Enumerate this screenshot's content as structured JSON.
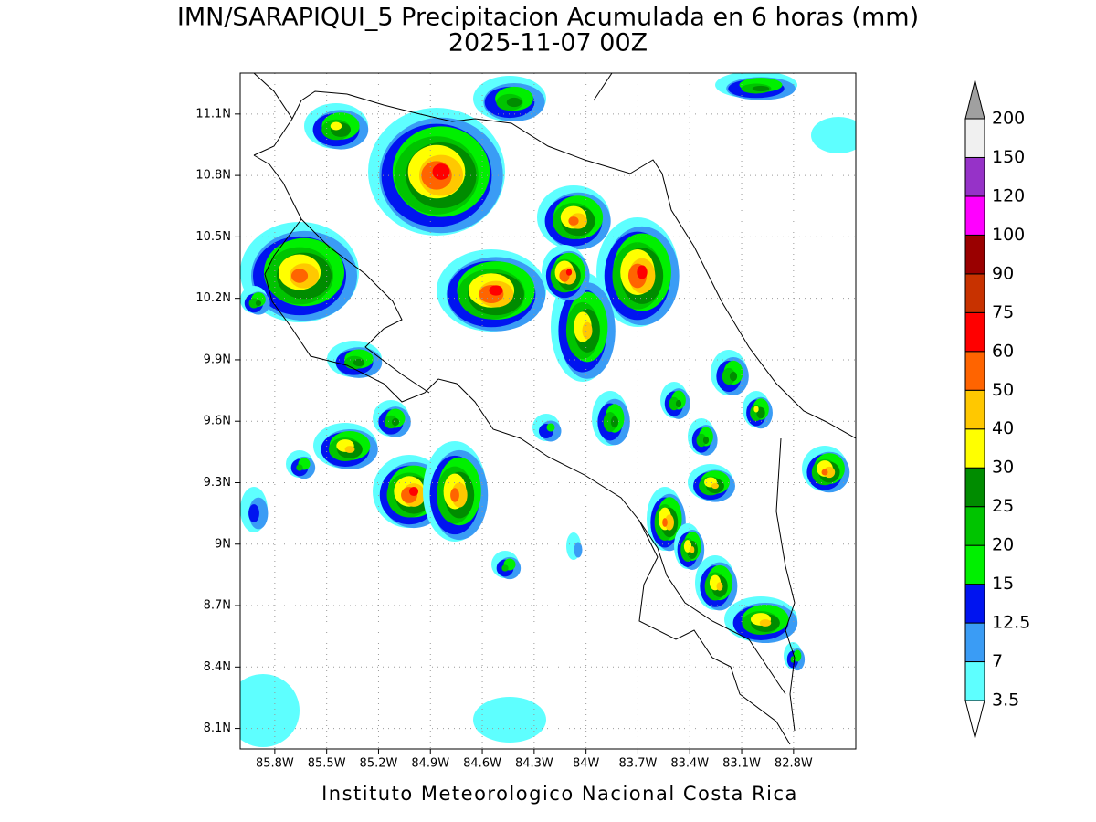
{
  "header": {
    "title": "IMN/SARAPIQUI_5 Precipitacion Acumulada en 6 horas (mm)",
    "subtitle": "2025-11-07 00Z"
  },
  "map": {
    "lonlim": [
      -86.0,
      -82.44
    ],
    "latlim": [
      8.0,
      11.3
    ],
    "lon_ticks": [
      {
        "value": -85.8,
        "label": "85.8W"
      },
      {
        "value": -85.5,
        "label": "85.5W"
      },
      {
        "value": -85.2,
        "label": "85.2W"
      },
      {
        "value": -84.9,
        "label": "84.9W"
      },
      {
        "value": -84.6,
        "label": "84.6W"
      },
      {
        "value": -84.3,
        "label": "84.3W"
      },
      {
        "value": -84.0,
        "label": "84W"
      },
      {
        "value": -83.7,
        "label": "83.7W"
      },
      {
        "value": -83.4,
        "label": "83.4W"
      },
      {
        "value": -83.1,
        "label": "83.1W"
      },
      {
        "value": -82.8,
        "label": "82.8W"
      }
    ],
    "lat_ticks": [
      {
        "value": 8.1,
        "label": "8.1N"
      },
      {
        "value": 8.4,
        "label": "8.4N"
      },
      {
        "value": 8.7,
        "label": "8.7N"
      },
      {
        "value": 9.0,
        "label": "9N"
      },
      {
        "value": 9.3,
        "label": "9.3N"
      },
      {
        "value": 9.6,
        "label": "9.6N"
      },
      {
        "value": 9.9,
        "label": "9.9N"
      },
      {
        "value": 10.2,
        "label": "10.2N"
      },
      {
        "value": 10.5,
        "label": "10.5N"
      },
      {
        "value": 10.8,
        "label": "10.8N"
      },
      {
        "value": 11.1,
        "label": "11.1N"
      }
    ],
    "grid": true
  },
  "colorbar": {
    "levels": [
      3.5,
      7,
      12.5,
      15,
      20,
      25,
      30,
      40,
      50,
      60,
      75,
      90,
      100,
      120,
      150,
      200
    ],
    "colors": [
      "#5effff",
      "#3a9cf5",
      "#0014f0",
      "#00f000",
      "#00c400",
      "#008c00",
      "#ffff00",
      "#ffc800",
      "#ff6400",
      "#ff0000",
      "#c83200",
      "#9a0000",
      "#ff00ff",
      "#9632c8",
      "#f0f0f0"
    ],
    "under_color": "#ffffff",
    "over_color": "#a0a0a0"
  },
  "footer": "Instituto Meteorologico Nacional Costa Rica"
}
